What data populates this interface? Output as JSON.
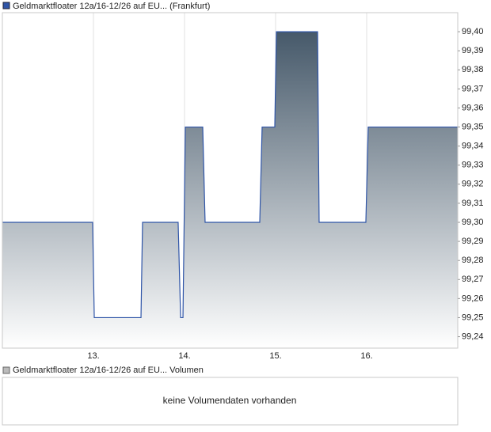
{
  "chart_data": {
    "type": "line",
    "series": [
      {
        "name": "Geldmarktfloater 12a/16-12/26 auf EU... (Frankfurt)",
        "color": "#2f55a8",
        "x": [
          12.0,
          12.991,
          13.009,
          13.522,
          13.539,
          13.93,
          13.957,
          13.983,
          14.009,
          14.2,
          14.226,
          14.826,
          14.852,
          14.991,
          15.009,
          15.461,
          15.478,
          15.991,
          16.017,
          17.0
        ],
        "values": [
          99.3,
          99.3,
          99.25,
          99.25,
          99.3,
          99.3,
          99.25,
          99.25,
          99.35,
          99.35,
          99.3,
          99.3,
          99.35,
          99.35,
          99.4,
          99.4,
          99.3,
          99.3,
          99.35,
          99.35
        ]
      }
    ],
    "area_gradient": [
      "#46596a",
      "#ffffff"
    ],
    "xlim": [
      12,
      17
    ],
    "xticks": [
      {
        "value": 13,
        "label": "13."
      },
      {
        "value": 14,
        "label": "14."
      },
      {
        "value": 15,
        "label": "15."
      },
      {
        "value": 16,
        "label": "16."
      }
    ],
    "ylim": [
      99.234,
      99.41
    ],
    "yticks": [
      {
        "value": 99.24,
        "label": "99,24"
      },
      {
        "value": 99.25,
        "label": "99,25"
      },
      {
        "value": 99.26,
        "label": "99,26"
      },
      {
        "value": 99.27,
        "label": "99,27"
      },
      {
        "value": 99.28,
        "label": "99,28"
      },
      {
        "value": 99.29,
        "label": "99,29"
      },
      {
        "value": 99.3,
        "label": "99,30"
      },
      {
        "value": 99.31,
        "label": "99,31"
      },
      {
        "value": 99.32,
        "label": "99,32"
      },
      {
        "value": 99.33,
        "label": "99,33"
      },
      {
        "value": 99.34,
        "label": "99,34"
      },
      {
        "value": 99.35,
        "label": "99,35"
      },
      {
        "value": 99.36,
        "label": "99,36"
      },
      {
        "value": 99.37,
        "label": "99,37"
      },
      {
        "value": 99.38,
        "label": "99,38"
      },
      {
        "value": 99.39,
        "label": "99,39"
      },
      {
        "value": 99.4,
        "label": "99,40"
      }
    ],
    "grid": "x"
  },
  "volume_panel": {
    "legend": "Geldmarktfloater 12a/16-12/26 auf EU... Volumen",
    "message": "keine Volumendaten vorhanden"
  }
}
